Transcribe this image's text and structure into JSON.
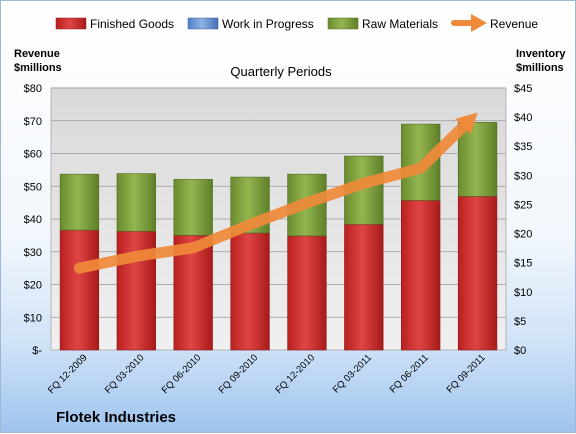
{
  "chart_data": {
    "type": "bar",
    "stacked": true,
    "title": "Quarterly Periods",
    "ylabel_left": [
      "Revenue",
      "$millions"
    ],
    "ylabel_right": [
      "Inventory",
      "$millions"
    ],
    "footer": "Flotek Industries",
    "categories": [
      "FQ 12-2009",
      "FQ 03-2010",
      "FQ 06-2010",
      "FQ 09-2010",
      "FQ 12-2010",
      "FQ 03-2011",
      "FQ 06-2011",
      "FQ 09-2011"
    ],
    "left_axis": {
      "min": 0,
      "max": 80,
      "ticks": [
        "$-",
        "$10",
        "$20",
        "$30",
        "$40",
        "$50",
        "$60",
        "$70",
        "$80"
      ]
    },
    "right_axis": {
      "min": 0,
      "max": 45,
      "ticks": [
        "$0",
        "$5",
        "$10",
        "$15",
        "$20",
        "$25",
        "$30",
        "$35",
        "$40",
        "$45"
      ]
    },
    "series": [
      {
        "name": "Finished Goods",
        "axis": "right",
        "color": "#cc2b2b",
        "values": [
          20.6,
          20.4,
          19.7,
          20.1,
          19.6,
          21.6,
          25.7,
          26.4
        ]
      },
      {
        "name": "Work in Progress",
        "axis": "right",
        "color": "#6f9bd8",
        "values": [
          0,
          0,
          0,
          0,
          0,
          0,
          0,
          0
        ]
      },
      {
        "name": "Raw Materials",
        "axis": "right",
        "color": "#7d9f3c",
        "values": [
          9.6,
          9.9,
          9.6,
          9.6,
          10.6,
          11.7,
          13.1,
          12.7
        ]
      },
      {
        "name": "Revenue",
        "axis": "left",
        "type": "line-arrow",
        "color": "#ef8a3a",
        "values": [
          25,
          28.6,
          31.2,
          38.3,
          44.9,
          50.9,
          55.5,
          72.5
        ]
      }
    ],
    "grid": true,
    "legend_position": "top"
  }
}
